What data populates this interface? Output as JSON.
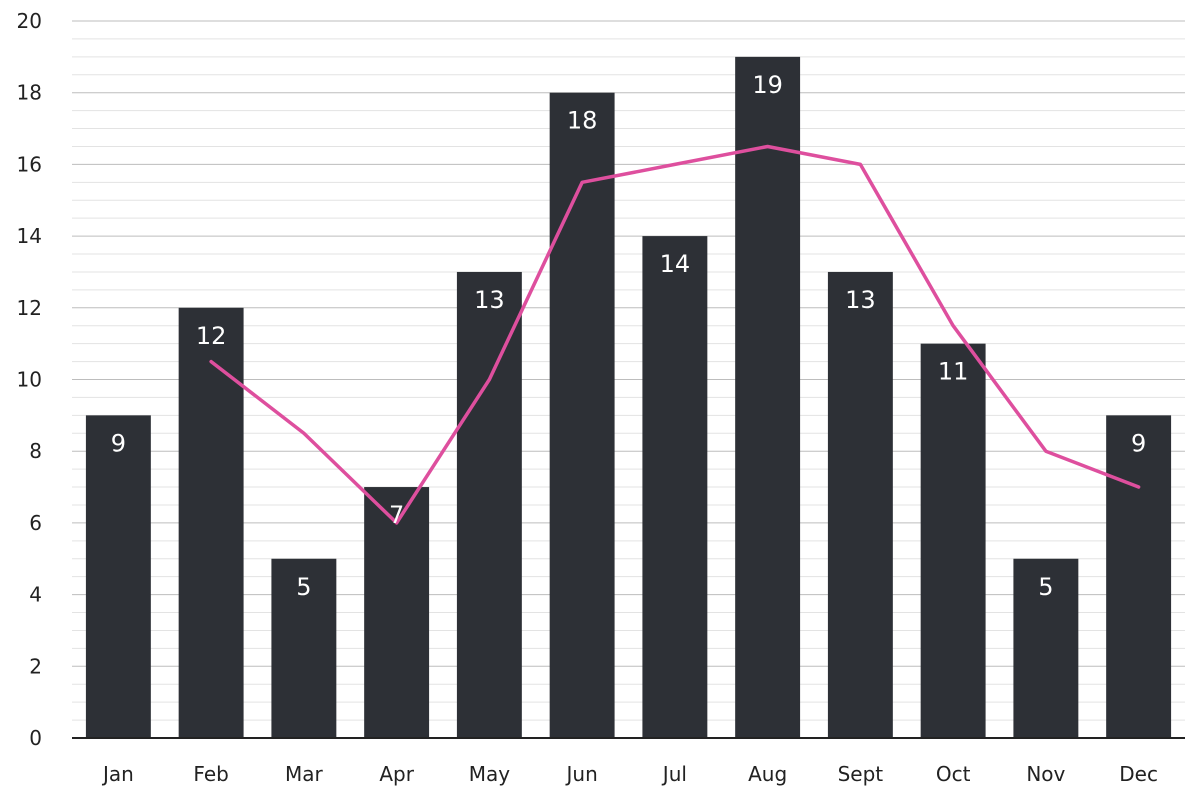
{
  "chart_data": {
    "type": "bar",
    "title": "",
    "xlabel": "",
    "ylabel": "",
    "categories": [
      "Jan",
      "Feb",
      "Mar",
      "Apr",
      "May",
      "Jun",
      "Jul",
      "Aug",
      "Sept",
      "Oct",
      "Nov",
      "Dec"
    ],
    "series": [
      {
        "type": "bar",
        "values": [
          9,
          12,
          5,
          7,
          13,
          18,
          14,
          19,
          13,
          11,
          5,
          9
        ],
        "color": "#2d3036",
        "show_data_labels": true
      },
      {
        "type": "line",
        "values": [
          null,
          10.5,
          8.5,
          6,
          10,
          15.5,
          16,
          16.5,
          16,
          11.5,
          8,
          7
        ],
        "color": "#de4f9e"
      }
    ],
    "ylim": [
      0,
      20
    ],
    "yticks": [
      0,
      2,
      4,
      6,
      8,
      10,
      12,
      14,
      16,
      18,
      20
    ],
    "grid": "horizontal minor and major gridlines",
    "legend": "none",
    "colors": {
      "bar": "#2d3036",
      "line": "#de4f9e",
      "axis": "#222222",
      "grid": "#cfcfcf",
      "label_text": "#ffffff"
    }
  }
}
